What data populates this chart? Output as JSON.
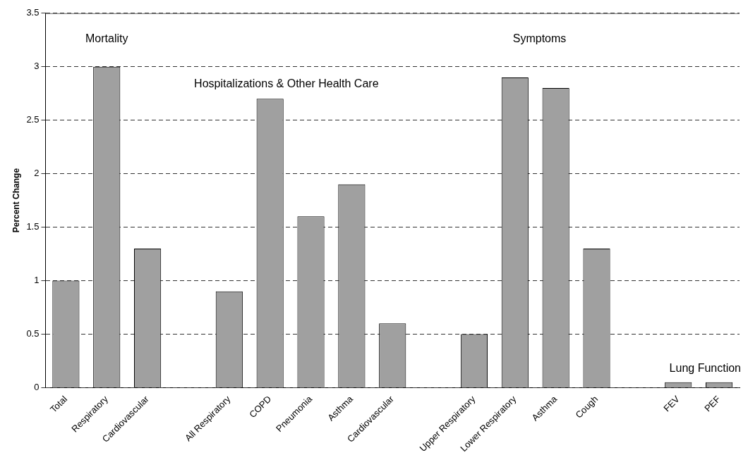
{
  "chart_data": {
    "type": "bar",
    "ylabel": "Percent Change",
    "categories": [
      "Total",
      "Respiratory",
      "Cardiovascular",
      null,
      "All Respiratory",
      "COPD",
      "Pneumonia",
      "Asthma",
      "Cardiovascular",
      null,
      "Upper Respiratory",
      "Lower Respiratory",
      "Asthma",
      "Cough",
      null,
      "FEV",
      "PEF"
    ],
    "values": [
      1,
      3,
      1.3,
      null,
      0.9,
      2.7,
      1.6,
      1.9,
      0.6,
      null,
      0.5,
      2.9,
      2.8,
      1.3,
      null,
      0.05,
      0.05
    ],
    "color": "#a0a0a0",
    "ylim": [
      0,
      3.5
    ],
    "yticks": [
      0,
      0.5,
      1,
      1.5,
      2,
      2.5,
      3,
      3.5
    ],
    "grid": "y",
    "legend": false,
    "annotations": [
      "Mortality",
      "Hospitalizations & Other Health Care",
      "Symptoms",
      "Lung Function"
    ]
  }
}
